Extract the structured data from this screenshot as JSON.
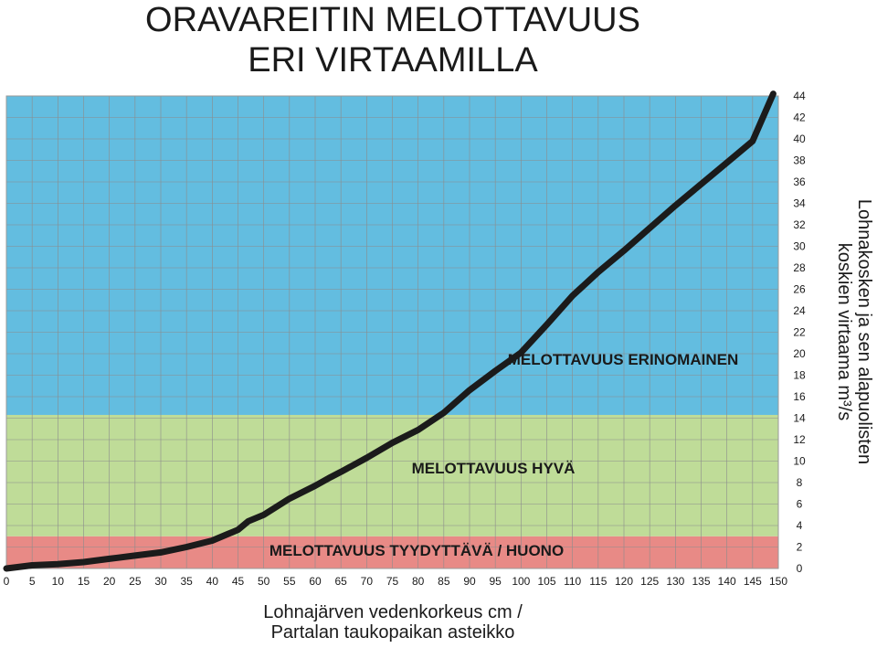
{
  "chart_data": {
    "type": "area",
    "title": [
      "ORAVAREITIN MELOTTAVUUS",
      "ERI VIRTAAMILLA"
    ],
    "xlabel": [
      "Lohnajärven vedenkorkeus cm /",
      "Partalan taukopaikan asteikko"
    ],
    "ylabel": [
      "Lohnakosken ja sen alapuolisten",
      "koskien virtaama m³/s"
    ],
    "xlim": [
      0,
      150
    ],
    "ylim": [
      0,
      44
    ],
    "x_ticks": [
      0,
      5,
      10,
      15,
      20,
      25,
      30,
      35,
      40,
      45,
      50,
      55,
      60,
      65,
      70,
      75,
      80,
      85,
      90,
      95,
      100,
      105,
      110,
      115,
      120,
      125,
      130,
      135,
      140,
      145,
      150
    ],
    "y_ticks": [
      0,
      2,
      4,
      6,
      8,
      10,
      12,
      14,
      16,
      18,
      20,
      22,
      24,
      26,
      28,
      30,
      32,
      34,
      36,
      38,
      40,
      42,
      44
    ],
    "grid": true,
    "zones": [
      {
        "label": "MELOTTAVUUS TYYDYTTÄVÄ / HUONO",
        "from": 0,
        "to": 3,
        "color": "#e88a86"
      },
      {
        "label": "MELOTTAVUUS HYVÄ",
        "from": 3,
        "to": 14.3,
        "color": "#bfdc98"
      },
      {
        "label": "MELOTTAVUUS ERINOMAINEN",
        "from": 14.3,
        "to": 44.3,
        "color": "#63bde0"
      }
    ],
    "x": [
      0,
      5,
      10,
      15,
      20,
      25,
      30,
      35,
      40,
      43,
      45,
      47,
      50,
      55,
      60,
      63,
      65,
      70,
      75,
      80,
      85,
      90,
      95,
      100,
      105,
      110,
      115,
      120,
      125,
      130,
      135,
      140,
      145,
      149
    ],
    "values": [
      0,
      0.3,
      0.4,
      0.6,
      0.9,
      1.2,
      1.5,
      2.0,
      2.6,
      3.2,
      3.6,
      4.4,
      5.0,
      6.5,
      7.7,
      8.5,
      9.0,
      10.3,
      11.7,
      12.9,
      14.5,
      16.6,
      18.4,
      20.1,
      22.7,
      25.4,
      27.6,
      29.6,
      31.7,
      33.8,
      35.8,
      37.8,
      39.8,
      44.2
    ]
  }
}
